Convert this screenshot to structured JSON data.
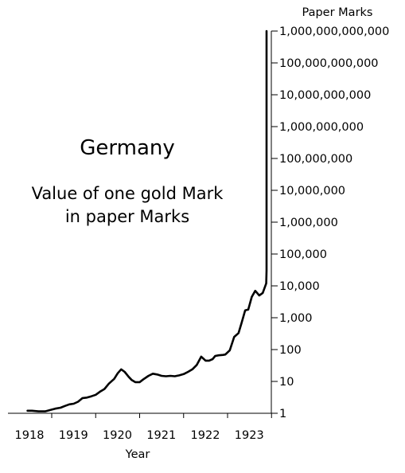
{
  "chart_data": {
    "type": "line",
    "title": "Germany",
    "subtitle_lines": [
      "Value of one gold Mark",
      "in paper Marks"
    ],
    "xlabel": "Year",
    "ylabel": "Paper Marks",
    "y_scale": "log",
    "ylim": [
      1,
      1000000000000
    ],
    "xlim": [
      1917.45,
      1923.9
    ],
    "y_ticks": [
      {
        "value": 1,
        "label": "1"
      },
      {
        "value": 10,
        "label": "10"
      },
      {
        "value": 100,
        "label": "100"
      },
      {
        "value": 1000,
        "label": "1,000"
      },
      {
        "value": 10000,
        "label": "10,000"
      },
      {
        "value": 100000,
        "label": "100,000"
      },
      {
        "value": 1000000,
        "label": "1,000,000"
      },
      {
        "value": 10000000,
        "label": "10,000,000"
      },
      {
        "value": 100000000,
        "label": "100,000,000"
      },
      {
        "value": 1000000000,
        "label": "1,000,000,000"
      },
      {
        "value": 10000000000,
        "label": "10,000,000,000"
      },
      {
        "value": 100000000000,
        "label": "100,000,000,000"
      },
      {
        "value": 1000000000000,
        "label": "1,000,000,000,000"
      }
    ],
    "x_ticks": [
      {
        "value": 1918,
        "label": "1918"
      },
      {
        "value": 1919,
        "label": "1919"
      },
      {
        "value": 1920,
        "label": "1920"
      },
      {
        "value": 1921,
        "label": "1921"
      },
      {
        "value": 1922,
        "label": "1922"
      },
      {
        "value": 1923,
        "label": "1923"
      }
    ],
    "grid": false,
    "legend": "none",
    "line_color": "#000000",
    "series": [
      {
        "x": [
          1917.45,
          1917.55,
          1917.7,
          1917.85,
          1918.0,
          1918.08,
          1918.2,
          1918.3,
          1918.4,
          1918.5,
          1918.6,
          1918.7,
          1918.8,
          1918.9,
          1919.0,
          1919.1,
          1919.2,
          1919.3,
          1919.42,
          1919.5,
          1919.58,
          1919.66,
          1919.75,
          1919.82,
          1919.9,
          1920.0,
          1920.08,
          1920.2,
          1920.3,
          1920.4,
          1920.5,
          1920.6,
          1920.7,
          1920.8,
          1920.9,
          1921.0,
          1921.1,
          1921.2,
          1921.3,
          1921.4,
          1921.5,
          1921.58,
          1921.66,
          1921.72,
          1921.8,
          1921.9,
          1921.95,
          1922.05,
          1922.15,
          1922.25,
          1922.32,
          1922.4,
          1922.47,
          1922.55,
          1922.63,
          1922.72,
          1922.8,
          1922.88,
          1922.97,
          1923.07,
          1923.17,
          1923.25,
          1923.33,
          1923.42,
          1923.5,
          1923.56,
          1923.62,
          1923.68,
          1923.74,
          1923.8,
          1923.86
        ],
        "values": [
          1.2,
          1.2,
          1.15,
          1.15,
          1.3,
          1.4,
          1.5,
          1.7,
          1.9,
          2.0,
          2.3,
          3.0,
          3.1,
          3.4,
          3.8,
          4.8,
          5.8,
          8.5,
          12.0,
          18.0,
          24.0,
          20.0,
          14.0,
          11.0,
          9.5,
          9.5,
          11.5,
          15.0,
          17.5,
          16.5,
          15.0,
          14.5,
          15.0,
          14.5,
          15.5,
          17.0,
          20.0,
          24.0,
          33.0,
          60.0,
          45.0,
          45.0,
          50.0,
          63.0,
          66.0,
          68.0,
          70.0,
          95.0,
          250.0,
          330.0,
          700.0,
          1700.0,
          1800.0,
          4500.0,
          7000.0,
          5000.0,
          6000.0,
          12000.0,
          30000.0,
          80000.0,
          1000000.0,
          20000000.0,
          3000000000.0,
          500000000000.0,
          1000000000000.0,
          1000000000000.0,
          1000000000000.0,
          1000000000000.0,
          1000000000000.0,
          1000000000000.0,
          1000000000000.0
        ]
      }
    ]
  }
}
